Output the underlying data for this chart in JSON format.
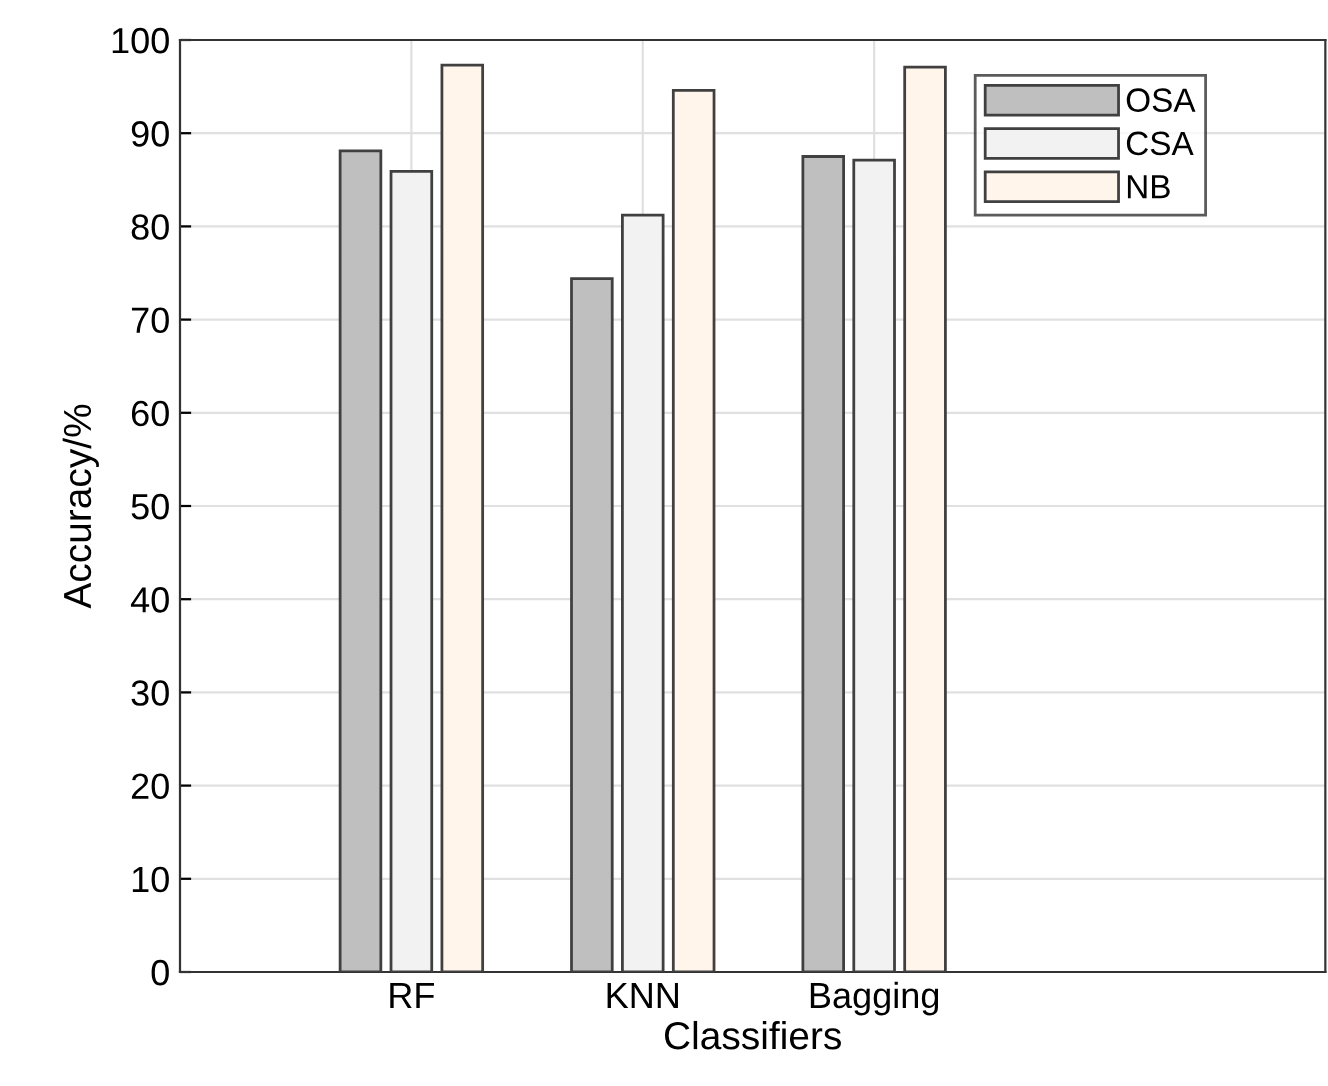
{
  "chart_data": {
    "type": "bar",
    "xlabel": "Classifiers",
    "ylabel": "Accuracy/%",
    "categories": [
      "RF",
      "KNN",
      "Bagging"
    ],
    "series": [
      {
        "name": "OSA",
        "color": "#bfbfbf",
        "values": [
          88.1,
          74.4,
          87.5
        ]
      },
      {
        "name": "CSA",
        "color": "#f2f2f2",
        "values": [
          85.9,
          81.2,
          87.1
        ]
      },
      {
        "name": "NB",
        "color": "#fff5eb",
        "values": [
          97.3,
          94.6,
          97.1
        ]
      }
    ],
    "ylim": [
      0,
      100
    ],
    "yticks": [
      0,
      10,
      20,
      30,
      40,
      50,
      60,
      70,
      80,
      90,
      100
    ],
    "grid": true,
    "legend": "top right"
  }
}
